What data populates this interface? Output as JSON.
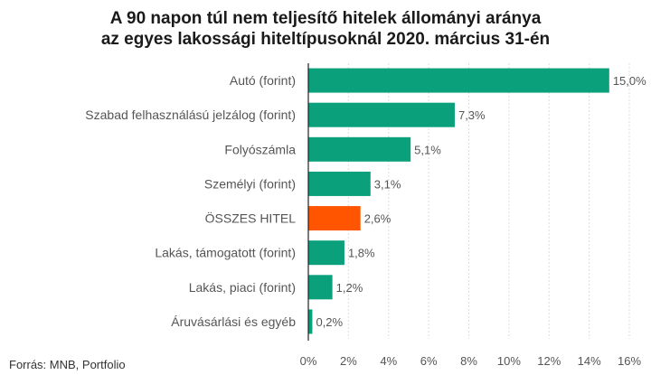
{
  "title": {
    "line1": "A 90 napon túl nem teljesítő hitelek állományi aránya",
    "line2": "az egyes lakossági hiteltípusoknál 2020. március 31-én"
  },
  "source": "Forrás: MNB, Portfolio",
  "colors": {
    "bar": "#0aa07c",
    "highlight": "#ff5500",
    "text": "#555555",
    "grid": "#dddddd",
    "axis": "#222222"
  },
  "chart_data": {
    "type": "bar",
    "orientation": "horizontal",
    "categories": [
      "Autó (forint)",
      "Szabad felhasználású jelzálog (forint)",
      "Folyószámla",
      "Személyi (forint)",
      "ÖSSZES HITEL",
      "Lakás, támogatott (forint)",
      "Lakás, piaci (forint)",
      "Áruvásárlási és egyéb"
    ],
    "values": [
      15.0,
      7.3,
      5.1,
      3.1,
      2.6,
      1.8,
      1.2,
      0.2
    ],
    "value_labels": [
      "15,0%",
      "7,3%",
      "5,1%",
      "3,1%",
      "2,6%",
      "1,8%",
      "1,2%",
      "0,2%"
    ],
    "highlight_index": 4,
    "xlim": [
      0,
      16
    ],
    "xticks": [
      "0%",
      "2%",
      "4%",
      "6%",
      "8%",
      "10%",
      "12%",
      "14%",
      "16%"
    ],
    "grid": "vertical"
  }
}
